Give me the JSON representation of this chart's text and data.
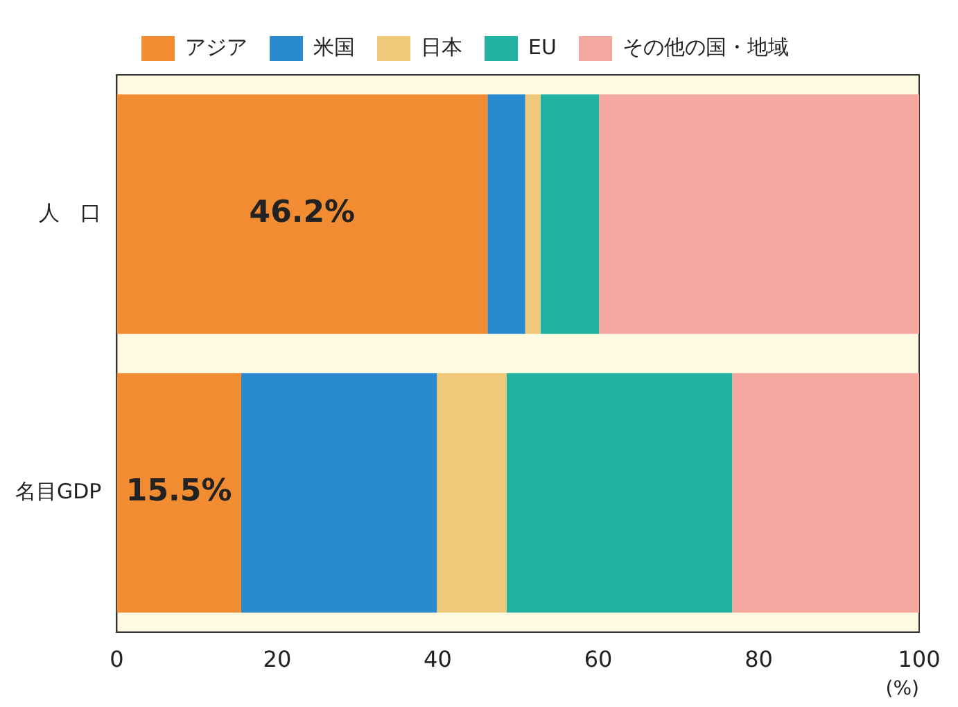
{
  "chart_data": {
    "type": "bar",
    "orientation": "horizontal",
    "stacked": true,
    "categories": [
      "人　口",
      "名目GDP"
    ],
    "xlabel": "(%)",
    "xlim": [
      0,
      100
    ],
    "xticks": [
      0,
      20,
      40,
      60,
      80,
      100
    ],
    "legend": "top",
    "series": [
      {
        "name": "アジア",
        "color": "#f28c32",
        "values": [
          46.2,
          15.5
        ],
        "value_labels": [
          "46.2%",
          "15.5%"
        ]
      },
      {
        "name": "米国",
        "color": "#2a8ad0",
        "values": [
          4.7,
          24.4
        ]
      },
      {
        "name": "日本",
        "color": "#f0c87a",
        "values": [
          1.9,
          8.7
        ]
      },
      {
        "name": "EU",
        "color": "#22b2a2",
        "values": [
          7.3,
          28.1
        ]
      },
      {
        "name": "その他の国・地域",
        "color": "#f5a8a0",
        "values": [
          39.9,
          23.3
        ]
      }
    ]
  }
}
